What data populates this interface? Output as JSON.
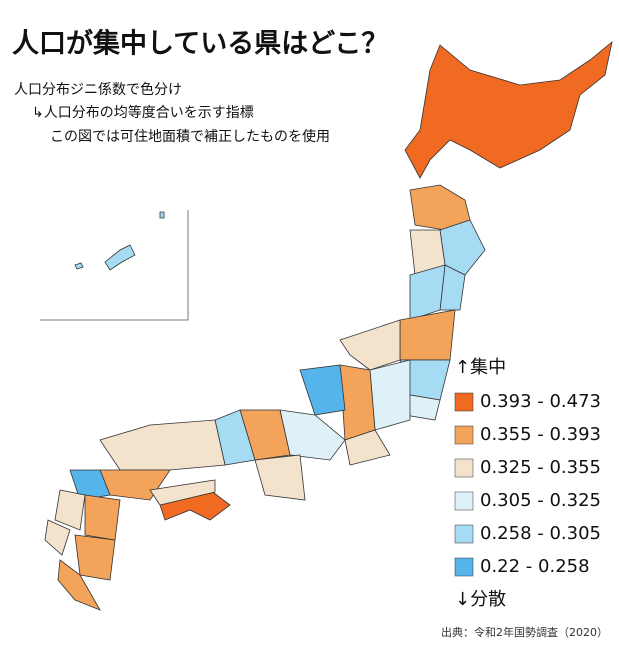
{
  "header": {
    "title": "人口が集中している県はどこ？",
    "lines": [
      "人口分布ジニ係数で色分け",
      "↳人口分布の均等度合いを示す指標",
      "この図では可住地面積で補正したものを使用"
    ]
  },
  "legend": {
    "top_label": "↑集中",
    "bottom_label": "↓分散",
    "items": [
      {
        "label": "0.393 - 0.473",
        "color": "#f06a22"
      },
      {
        "label": "0.355 - 0.393",
        "color": "#f3a35a"
      },
      {
        "label": "0.325 - 0.355",
        "color": "#f3e2cc"
      },
      {
        "label": "0.305 - 0.325",
        "color": "#dff1f8"
      },
      {
        "label": "0.258 - 0.305",
        "color": "#a5dcf3"
      },
      {
        "label": "0.22 - 0.258",
        "color": "#55b4ea"
      }
    ]
  },
  "source": "出典：令和2年国勢調査（2020）"
}
